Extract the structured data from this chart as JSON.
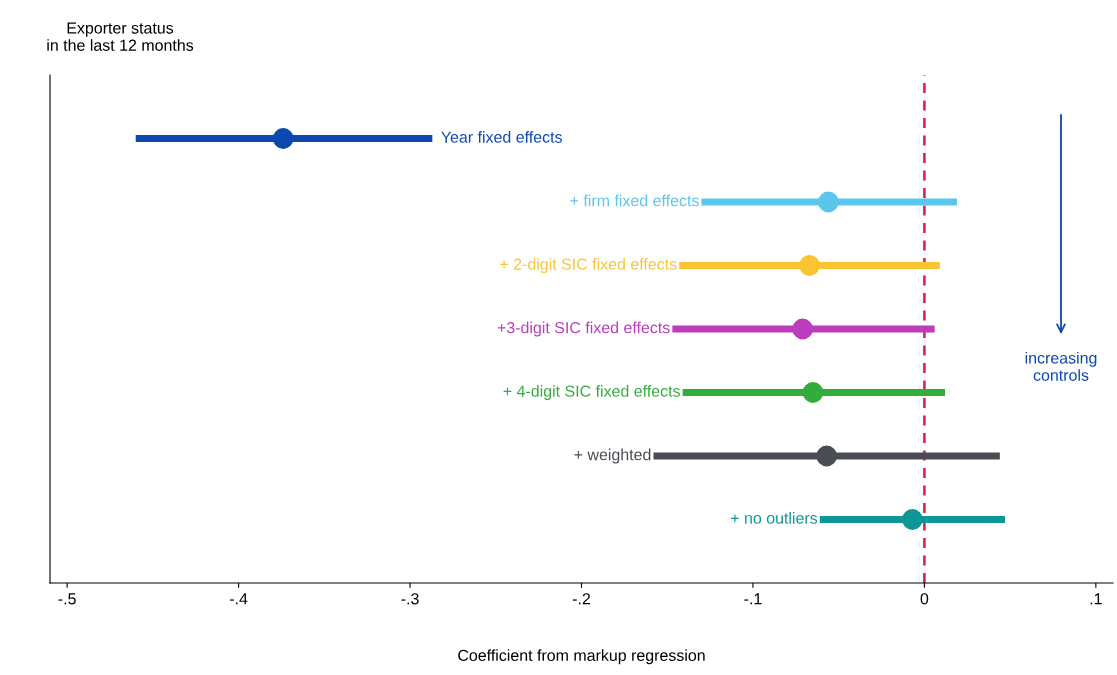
{
  "chart_data": {
    "type": "scatter",
    "xlabel": "Coefficient from markup regression",
    "ylabel": "Exporter status\nin the last 12 months",
    "categories": [
      null,
      null,
      null,
      null,
      null,
      null,
      null
    ],
    "series": [
      {
        "name": "Year fixed effects",
        "color": "#0b49b0",
        "values": [
          -0.374,
          null,
          null,
          null,
          null,
          null,
          null
        ],
        "errors": [
          [
            -0.46,
            -0.287
          ],
          null,
          null,
          null,
          null,
          null,
          null
        ]
      },
      {
        "name": "+ firm fixed effects",
        "color": "#5ac6ec",
        "values": [
          null,
          -0.056,
          null,
          null,
          null,
          null,
          null
        ],
        "errors": [
          null,
          [
            -0.13,
            0.019
          ],
          null,
          null,
          null,
          null,
          null
        ]
      },
      {
        "name": "+ 2-digit SIC fixed effects",
        "color": "#f9c332",
        "values": [
          null,
          null,
          -0.067,
          null,
          null,
          null,
          null
        ],
        "errors": [
          null,
          null,
          [
            -0.143,
            0.009
          ],
          null,
          null,
          null,
          null
        ]
      },
      {
        "name": "+3-digit SIC fixed effects",
        "color": "#bc3cbc",
        "values": [
          null,
          null,
          null,
          -0.071,
          null,
          null,
          null
        ],
        "errors": [
          null,
          null,
          null,
          [
            -0.147,
            0.006
          ],
          null,
          null,
          null
        ]
      },
      {
        "name": "+ 4-digit SIC fixed effects",
        "color": "#33ac3c",
        "values": [
          null,
          null,
          null,
          null,
          -0.065,
          null,
          null
        ],
        "errors": [
          null,
          null,
          null,
          null,
          [
            -0.141,
            0.012
          ],
          null,
          null
        ]
      },
      {
        "name": "+ weighted",
        "color": "#4a4c54",
        "values": [
          null,
          null,
          null,
          null,
          null,
          -0.057,
          null
        ],
        "errors": [
          null,
          null,
          null,
          null,
          null,
          [
            -0.158,
            0.044
          ],
          null
        ]
      },
      {
        "name": "+ no outliers",
        "color": "#0e9696",
        "values": [
          null,
          null,
          null,
          null,
          null,
          null,
          -0.007
        ],
        "errors": [
          null,
          null,
          null,
          null,
          null,
          null,
          [
            -0.061,
            0.047
          ]
        ]
      }
    ],
    "xlim": [
      -0.51,
      0.11
    ],
    "xticks": [
      {
        "value": -0.5,
        "label": "-.5"
      },
      {
        "value": -0.4,
        "label": "-.4"
      },
      {
        "value": -0.3,
        "label": "-.3"
      },
      {
        "value": -0.2,
        "label": "-.2"
      },
      {
        "value": -0.1,
        "label": "-.1"
      },
      {
        "value": 0,
        "label": "0"
      },
      {
        "value": 0.1,
        "label": ".1"
      }
    ],
    "orientation": "horizontal",
    "ref_lines": [
      {
        "axis": "x",
        "value": 0,
        "color": "#d81b4a",
        "line_style": "dashed"
      }
    ],
    "annotations": [
      "increasing\ncontrols"
    ],
    "marker": "circle",
    "grid": false,
    "tick_labels": "x"
  }
}
